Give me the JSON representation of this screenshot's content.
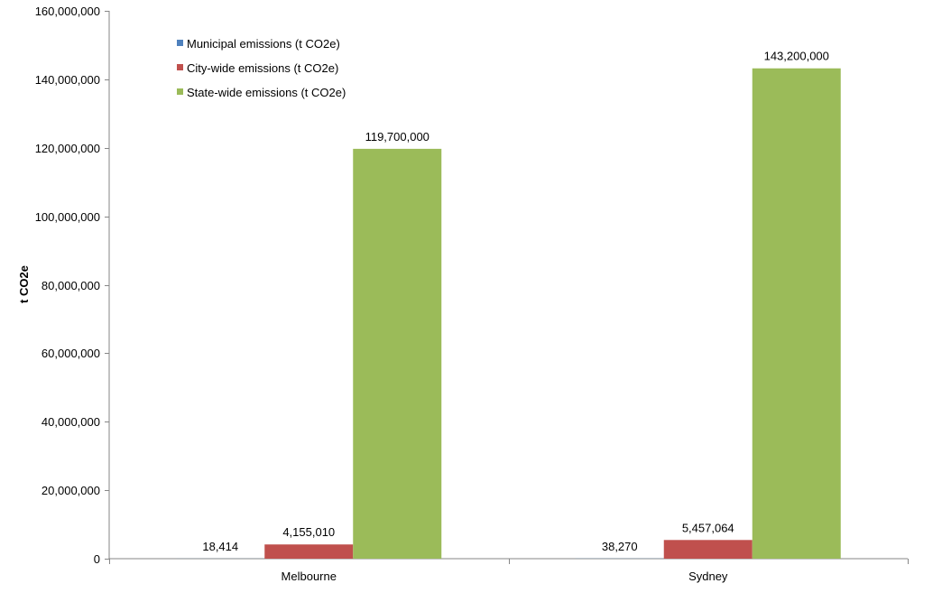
{
  "chart_data": {
    "type": "bar",
    "title": "",
    "xlabel": "",
    "ylabel": "t CO2e",
    "ylim": [
      0,
      160000000
    ],
    "y_ticks": [
      0,
      20000000,
      40000000,
      60000000,
      80000000,
      100000000,
      120000000,
      140000000,
      160000000
    ],
    "y_tick_labels": [
      "0",
      "20,000,000",
      "40,000,000",
      "60,000,000",
      "80,000,000",
      "100,000,000",
      "120,000,000",
      "140,000,000",
      "160,000,000"
    ],
    "categories": [
      "Melbourne",
      "Sydney"
    ],
    "series": [
      {
        "name": "Municipal emissions (t CO2e)",
        "color": "#4F81BD",
        "values": [
          18414,
          38270
        ],
        "labels": [
          "18,414",
          "38,270"
        ]
      },
      {
        "name": "City-wide emissions (t CO2e)",
        "color": "#C0504D",
        "values": [
          4155010,
          5457064
        ],
        "labels": [
          "4,155,010",
          "5,457,064"
        ]
      },
      {
        "name": "State-wide emissions (t CO2e)",
        "color": "#9BBB59",
        "values": [
          119700000,
          143200000
        ],
        "labels": [
          "119,700,000",
          "143,200,000"
        ]
      }
    ],
    "grid": false,
    "legend_position": "top-left"
  }
}
